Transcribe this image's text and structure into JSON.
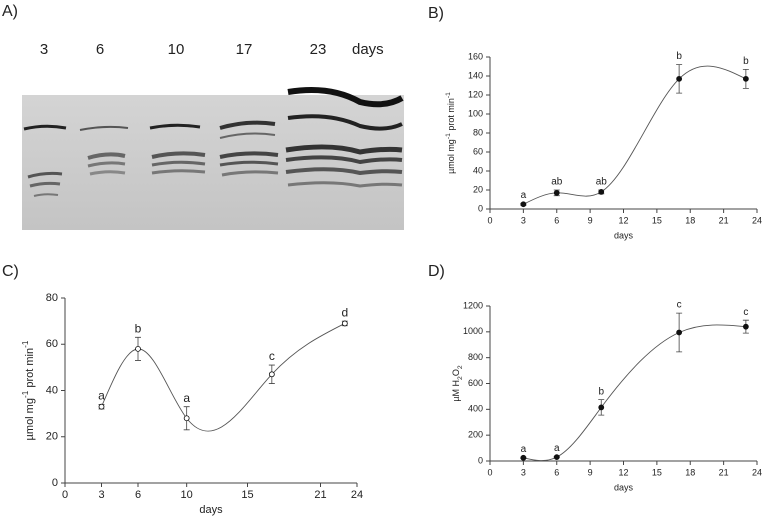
{
  "chart_data": [
    {
      "type": "gel",
      "panel": "A)",
      "lanes": [
        "3",
        "6",
        "10",
        "17",
        "23"
      ],
      "unit": "days"
    },
    {
      "type": "scatter",
      "panel": "B)",
      "x": [
        3,
        6,
        10,
        17,
        23
      ],
      "values": [
        5,
        17,
        18,
        137,
        137
      ],
      "errors": [
        1,
        3,
        2,
        15,
        10
      ],
      "letters": [
        "a",
        "ab",
        "ab",
        "b",
        "b"
      ],
      "marker": "filled",
      "xlabel": "days",
      "ylabel": [
        "µmol mg",
        "-1",
        " prot min",
        "-1"
      ],
      "xlim": [
        0,
        24
      ],
      "xticks": [
        0,
        3,
        6,
        9,
        12,
        15,
        18,
        21,
        24
      ],
      "ylim": [
        0,
        160
      ],
      "yticks": [
        0,
        20,
        40,
        60,
        80,
        100,
        120,
        140,
        160
      ]
    },
    {
      "type": "scatter",
      "panel": "C)",
      "x": [
        3,
        6,
        10,
        17,
        23
      ],
      "values": [
        33,
        58,
        28,
        47,
        69
      ],
      "errors": [
        1,
        5,
        5,
        4,
        1
      ],
      "letters": [
        "a",
        "b",
        "a",
        "c",
        "d"
      ],
      "marker": "hollow",
      "xlabel": "days",
      "ylabel": [
        "µmol mg",
        "-1",
        " prot min",
        "-1"
      ],
      "xlim": [
        0,
        24
      ],
      "xticks": [
        0,
        3,
        6,
        10,
        15,
        21,
        24
      ],
      "ylim": [
        0,
        80
      ],
      "yticks": [
        0,
        20,
        40,
        60,
        80
      ]
    },
    {
      "type": "scatter",
      "panel": "D)",
      "x": [
        3,
        6,
        10,
        17,
        23
      ],
      "values": [
        25,
        30,
        415,
        995,
        1040
      ],
      "errors": [
        5,
        5,
        60,
        150,
        50
      ],
      "letters": [
        "a",
        "a",
        "b",
        "c",
        "c"
      ],
      "marker": "filled",
      "xlabel": "days",
      "ylabel": [
        "µM H",
        "2",
        "O",
        "2"
      ],
      "xlim": [
        0,
        24
      ],
      "xticks": [
        0,
        3,
        6,
        9,
        12,
        15,
        18,
        21,
        24
      ],
      "ylim": [
        0,
        1200
      ],
      "yticks": [
        0,
        200,
        400,
        600,
        800,
        1000,
        1200
      ]
    }
  ]
}
